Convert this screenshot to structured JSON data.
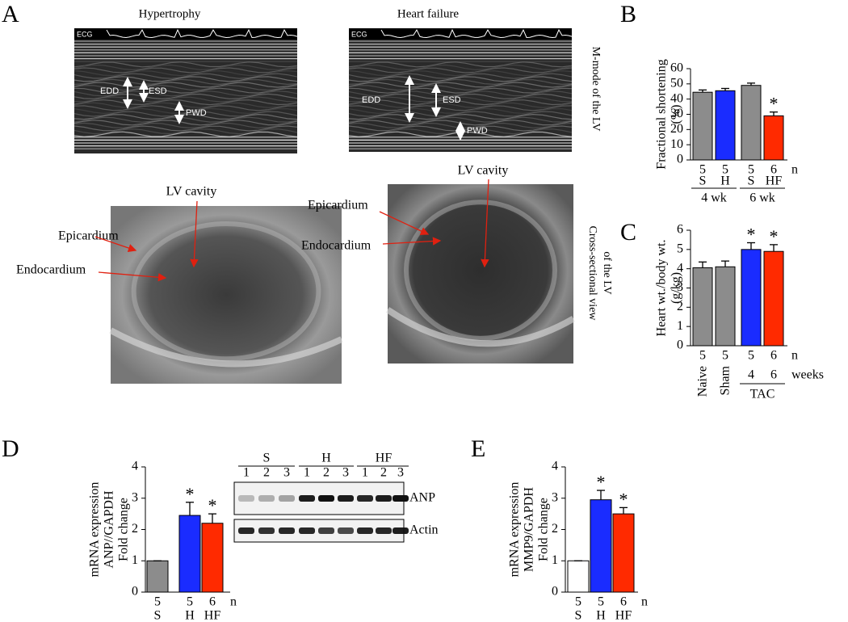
{
  "panel_labels": [
    "A",
    "B",
    "C",
    "D",
    "E"
  ],
  "figure_a": {
    "mmode": [
      {
        "title": "Hypertrophy",
        "labels": [
          "ECG",
          "EDD",
          "ESD",
          "PWD"
        ]
      },
      {
        "title": "Heart failure",
        "labels": [
          "ECG",
          "EDD",
          "ESD",
          "PWD"
        ]
      }
    ],
    "mmode_side_label": "M-mode of the LV",
    "cross": [
      {
        "labels": [
          "LV cavity",
          "Epicardium",
          "Endocardium"
        ]
      },
      {
        "labels": [
          "LV cavity",
          "Epicardium",
          "Endocardium"
        ]
      }
    ],
    "cross_side_label": [
      "Cross-sectional view",
      "of the LV"
    ]
  },
  "blot": {
    "groups": [
      "S",
      "H",
      "HF"
    ],
    "lanes": [
      "1",
      "2",
      "3"
    ],
    "bands": [
      "ANP",
      "Actin"
    ]
  },
  "chart_data": [
    {
      "type": "bar",
      "ylabel": [
        "Fractional shortening",
        "(%)"
      ],
      "categories": [
        "S",
        "H",
        "S",
        "HF"
      ],
      "colors": [
        "#8c8c8c",
        "#1a2cff",
        "#8c8c8c",
        "#ff2a00"
      ],
      "values": [
        44.5,
        45.5,
        49,
        29
      ],
      "errors": [
        1.5,
        1.5,
        1.5,
        2.5
      ],
      "n": [
        5,
        5,
        5,
        6
      ],
      "n_label": "n",
      "groups": [
        {
          "label": "4 wk",
          "members": [
            0,
            1
          ]
        },
        {
          "label": "6 wk",
          "members": [
            2,
            3
          ]
        }
      ],
      "significant": [
        false,
        false,
        false,
        true
      ],
      "significance_label": "*",
      "ylim": [
        0,
        60
      ],
      "yticks": [
        0,
        10,
        20,
        30,
        40,
        50,
        60
      ]
    },
    {
      "type": "bar",
      "ylabel": [
        "Heart wt./body wt.",
        "(g/kg)"
      ],
      "categories": [
        "Naive",
        "Sham",
        "4",
        "6"
      ],
      "colors": [
        "#8c8c8c",
        "#8c8c8c",
        "#1a2cff",
        "#ff2a00"
      ],
      "values": [
        4.05,
        4.1,
        5.0,
        4.9
      ],
      "errors": [
        0.3,
        0.3,
        0.35,
        0.35
      ],
      "n": [
        5,
        5,
        5,
        6
      ],
      "n_label": "n",
      "unit_label": "weeks",
      "groups": [
        {
          "label": "TAC",
          "members": [
            2,
            3
          ]
        }
      ],
      "significant": [
        false,
        false,
        true,
        true
      ],
      "significance_label": "*",
      "ylim": [
        0,
        6
      ],
      "yticks": [
        0,
        1,
        2,
        3,
        4,
        5,
        6
      ]
    },
    {
      "type": "bar",
      "ylabel": [
        "mRNA expression",
        "ANP//GAPDH",
        "Fold change"
      ],
      "categories": [
        "S",
        "H",
        "HF"
      ],
      "colors": [
        "#8c8c8c",
        "#1a2cff",
        "#ff2a00"
      ],
      "values": [
        1,
        2.45,
        2.2
      ],
      "errors": [
        0,
        0.42,
        0.3
      ],
      "n": [
        5,
        5,
        6
      ],
      "n_label": "n",
      "significant": [
        false,
        true,
        true
      ],
      "significance_label": "*",
      "ylim": [
        0,
        4
      ],
      "yticks": [
        0,
        1,
        2,
        3,
        4
      ]
    },
    {
      "type": "bar",
      "ylabel": [
        "mRNA expression",
        "MMP9/GAPDH",
        "Fold change"
      ],
      "categories": [
        "S",
        "H",
        "HF"
      ],
      "colors": [
        "#ffffff",
        "#1a2cff",
        "#ff2a00"
      ],
      "values": [
        1,
        2.95,
        2.5
      ],
      "errors": [
        0,
        0.3,
        0.2
      ],
      "n": [
        5,
        5,
        6
      ],
      "n_label": "n",
      "significant": [
        false,
        true,
        true
      ],
      "significance_label": "*",
      "ylim": [
        0,
        4
      ],
      "yticks": [
        0,
        1,
        2,
        3,
        4
      ]
    }
  ]
}
